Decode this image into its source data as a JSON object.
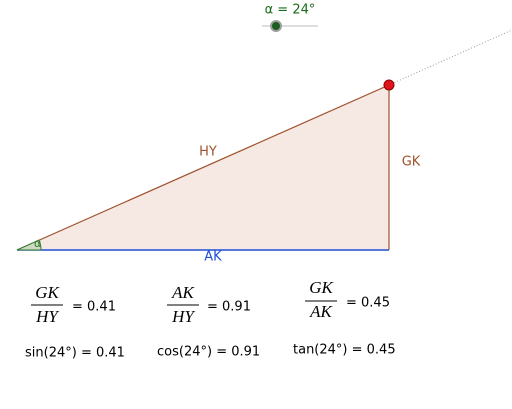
{
  "slider": {
    "label": "α = 24°"
  },
  "triangle": {
    "hypotenuse": "HY",
    "opposite": "GK",
    "adjacent": "AK",
    "angle": "α"
  },
  "ratios": [
    {
      "numerator": "GK",
      "denominator": "HY",
      "result": "= 0.41"
    },
    {
      "numerator": "AK",
      "denominator": "HY",
      "result": "= 0.91"
    },
    {
      "numerator": "GK",
      "denominator": "AK",
      "result": "= 0.45"
    }
  ],
  "functions": [
    "sin(24°) = 0.41",
    "cos(24°) = 0.91",
    "tan(24°) = 0.45"
  ]
}
